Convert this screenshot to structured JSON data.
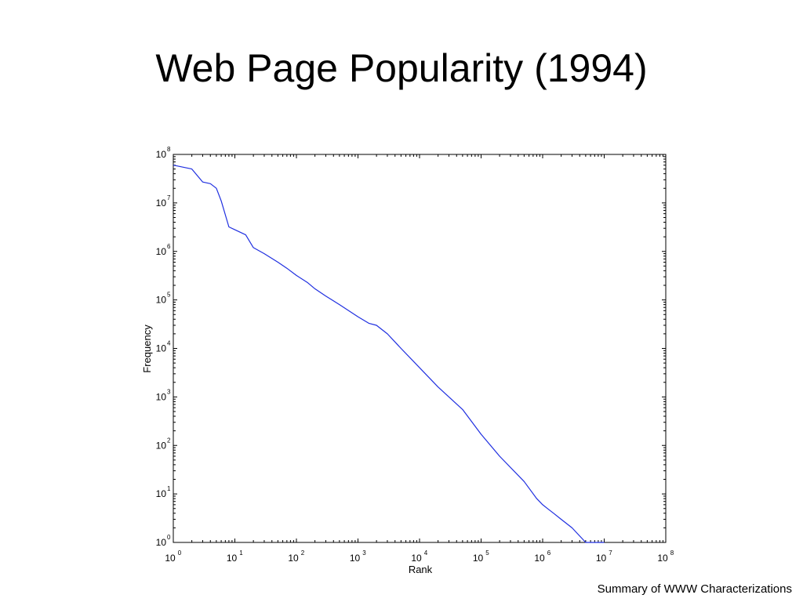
{
  "slide": {
    "title": "Web Page Popularity (1994)",
    "footer": "Summary of WWW Characterizations"
  },
  "chart_data": {
    "type": "line",
    "xlabel": "Rank",
    "ylabel": "Frequency",
    "xscale": "log",
    "yscale": "log",
    "xlim": [
      1,
      100000000
    ],
    "ylim": [
      1,
      100000000
    ],
    "xticks": [
      1,
      10,
      100,
      1000,
      10000,
      100000,
      1000000,
      10000000,
      100000000
    ],
    "yticks": [
      1,
      10,
      100,
      1000,
      10000,
      100000,
      1000000,
      10000000,
      100000000
    ],
    "tick_base": "10",
    "tick_exponents": [
      "0",
      "1",
      "2",
      "3",
      "4",
      "5",
      "6",
      "7",
      "8"
    ],
    "grid": false,
    "legend": "none",
    "line_color": "#1f2fe0",
    "series": [
      {
        "x": [
          1,
          2,
          3,
          4,
          5,
          6,
          8,
          10,
          15,
          20,
          30,
          50,
          70,
          100,
          150,
          200,
          300,
          500,
          1000,
          1500,
          2000,
          3000,
          5000,
          10000,
          20000,
          50000,
          100000,
          200000,
          500000,
          800000,
          1000000,
          1200000,
          1500000,
          2000000,
          3000000,
          5000000,
          10000000
        ],
        "y": [
          60000000,
          50000000,
          27000000,
          25000000,
          20000000,
          11000000,
          3200000,
          2800000,
          2200000,
          1200000,
          900000,
          600000,
          450000,
          320000,
          230000,
          170000,
          120000,
          80000,
          45000,
          33000,
          30000,
          20000,
          10000,
          4000,
          1600,
          550,
          170,
          60,
          18,
          8,
          6,
          5,
          4,
          3,
          2,
          1,
          1
        ]
      }
    ]
  }
}
